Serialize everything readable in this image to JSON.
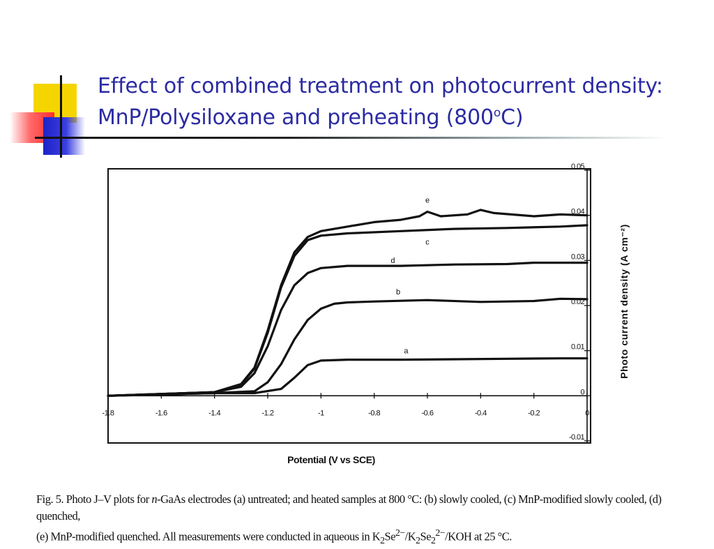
{
  "slide": {
    "title_line1": "Effect of combined treatment on photocurrent density:",
    "title_line2_main": "MnP/Polysiloxane and preheating (800",
    "title_line2_sup": "o",
    "title_line2_end": "C)"
  },
  "caption": {
    "line1_a": "Fig. 5. Photo J–V plots for ",
    "line1_b": "n",
    "line1_c": "-GaAs electrodes (a) untreated; and heated samples at 800 °C: (b) slowly cooled, (c) MnP-modified slowly cooled, (d) quenched,",
    "line2_a": "(e) MnP-modified quenched. All measurements were conducted in aqueous in K",
    "line2_b": "2",
    "line2_c": "Se",
    "line2_d": "2−",
    "line2_e": "/K",
    "line2_f": "2",
    "line2_g": "Se",
    "line2_h": "2",
    "line2_i": "2−",
    "line2_j": "/KOH at 25 °C."
  },
  "colors": {
    "title": "#2b2ba3",
    "curve": "#111111",
    "deco_yellow": "#f5d500",
    "deco_red": "#ff2b2b",
    "deco_blue": "#1f23c8"
  },
  "chart_data": {
    "type": "line",
    "title": "",
    "xlabel": "Potential (V vs  SCE)",
    "ylabel": "Photo current density (A cm⁻²)",
    "xlim": [
      -1.8,
      0
    ],
    "ylim": [
      -0.01,
      0.05
    ],
    "x_ticks": [
      -1.8,
      -1.6,
      -1.4,
      -1.2,
      -1.0,
      -0.8,
      -0.6,
      -0.4,
      -0.2,
      0
    ],
    "x_tick_labels": [
      "-1.8",
      "-1.6",
      "-1.4",
      "-1.2",
      "-1",
      "-0.8",
      "-0.6",
      "-0.4",
      "-0.2",
      "0"
    ],
    "y_ticks": [
      -0.01,
      0,
      0.01,
      0.02,
      0.03,
      0.04,
      0.05
    ],
    "y_tick_labels": [
      "-0.01",
      "0",
      "0.01",
      "0.02",
      "0.03",
      "0.04",
      "0.05"
    ],
    "grid": false,
    "series": [
      {
        "name": "a",
        "points": [
          [
            -1.8,
            0.0
          ],
          [
            -1.4,
            0.0006
          ],
          [
            -1.25,
            0.0006
          ],
          [
            -1.15,
            0.0015
          ],
          [
            -1.1,
            0.004
          ],
          [
            -1.05,
            0.0068
          ],
          [
            -1.0,
            0.0078
          ],
          [
            -0.9,
            0.008
          ],
          [
            -0.7,
            0.008
          ],
          [
            -0.5,
            0.0081
          ],
          [
            -0.3,
            0.0082
          ],
          [
            -0.1,
            0.0083
          ],
          [
            0,
            0.0083
          ]
        ]
      },
      {
        "name": "b",
        "points": [
          [
            -1.8,
            0.0
          ],
          [
            -1.4,
            0.0006
          ],
          [
            -1.25,
            0.001
          ],
          [
            -1.2,
            0.003
          ],
          [
            -1.15,
            0.007
          ],
          [
            -1.1,
            0.0125
          ],
          [
            -1.05,
            0.0168
          ],
          [
            -1.0,
            0.0193
          ],
          [
            -0.95,
            0.0204
          ],
          [
            -0.9,
            0.0207
          ],
          [
            -0.8,
            0.0209
          ],
          [
            -0.6,
            0.0212
          ],
          [
            -0.4,
            0.0208
          ],
          [
            -0.2,
            0.021
          ],
          [
            -0.1,
            0.0215
          ],
          [
            0,
            0.0214
          ]
        ]
      },
      {
        "name": "c",
        "points": [
          [
            -1.8,
            0.0
          ],
          [
            -1.4,
            0.0008
          ],
          [
            -1.3,
            0.0025
          ],
          [
            -1.25,
            0.006
          ],
          [
            -1.2,
            0.014
          ],
          [
            -1.15,
            0.024
          ],
          [
            -1.1,
            0.031
          ],
          [
            -1.05,
            0.0345
          ],
          [
            -1.0,
            0.0355
          ],
          [
            -0.9,
            0.036
          ],
          [
            -0.7,
            0.0365
          ],
          [
            -0.5,
            0.037
          ],
          [
            -0.3,
            0.0372
          ],
          [
            -0.1,
            0.0375
          ],
          [
            0,
            0.0378
          ]
        ]
      },
      {
        "name": "d",
        "points": [
          [
            -1.8,
            0.0
          ],
          [
            -1.4,
            0.0008
          ],
          [
            -1.3,
            0.002
          ],
          [
            -1.25,
            0.005
          ],
          [
            -1.2,
            0.011
          ],
          [
            -1.15,
            0.019
          ],
          [
            -1.1,
            0.0245
          ],
          [
            -1.05,
            0.0272
          ],
          [
            -1.0,
            0.0283
          ],
          [
            -0.9,
            0.0288
          ],
          [
            -0.7,
            0.0288
          ],
          [
            -0.5,
            0.0291
          ],
          [
            -0.3,
            0.0292
          ],
          [
            -0.2,
            0.0295
          ],
          [
            0,
            0.0295
          ]
        ]
      },
      {
        "name": "e",
        "points": [
          [
            -1.8,
            0.0
          ],
          [
            -1.4,
            0.0008
          ],
          [
            -1.3,
            0.0026
          ],
          [
            -1.25,
            0.0062
          ],
          [
            -1.2,
            0.0145
          ],
          [
            -1.15,
            0.0245
          ],
          [
            -1.1,
            0.0318
          ],
          [
            -1.05,
            0.0352
          ],
          [
            -1.0,
            0.0365
          ],
          [
            -0.9,
            0.0375
          ],
          [
            -0.8,
            0.0385
          ],
          [
            -0.7,
            0.039
          ],
          [
            -0.63,
            0.0398
          ],
          [
            -0.6,
            0.0408
          ],
          [
            -0.55,
            0.0398
          ],
          [
            -0.45,
            0.0402
          ],
          [
            -0.4,
            0.0412
          ],
          [
            -0.35,
            0.0405
          ],
          [
            -0.2,
            0.0398
          ],
          [
            -0.1,
            0.0402
          ],
          [
            0,
            0.04
          ]
        ]
      }
    ],
    "curve_labels": [
      {
        "series": "e",
        "x": -0.6,
        "y": 0.0428
      },
      {
        "series": "c",
        "x": -0.6,
        "y": 0.0335
      },
      {
        "series": "d",
        "x": -0.73,
        "y": 0.0294
      },
      {
        "series": "b",
        "x": -0.71,
        "y": 0.0225
      },
      {
        "series": "a",
        "x": -0.68,
        "y": 0.0094
      }
    ]
  }
}
